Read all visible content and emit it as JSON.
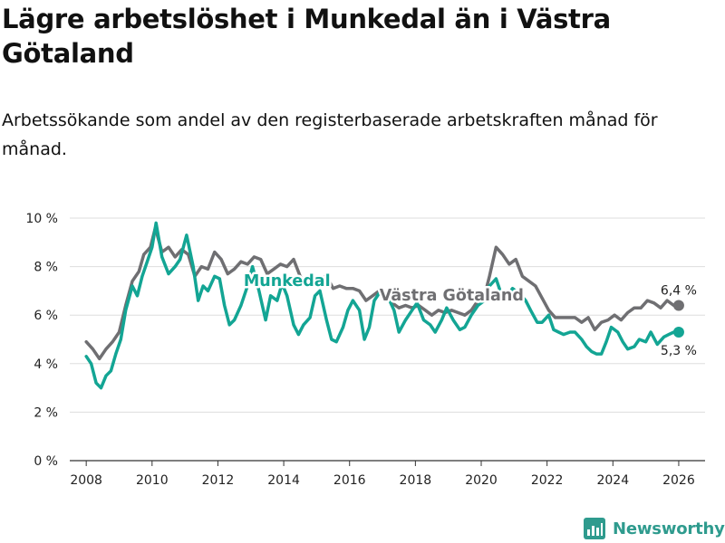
{
  "title": "Lägre arbetslöshet i Munkedal än i Västra Götaland",
  "subtitle": "Arbetssökande som andel av den registerbaserade arbetskraften månad för månad.",
  "brand": {
    "name": "Newsworthy",
    "icon": "newsworthy-logo-icon",
    "color": "#2f9b8e"
  },
  "chart_data": {
    "type": "line",
    "title": "Lägre arbetslöshet i Munkedal än i Västra Götaland",
    "xlabel": "",
    "ylabel": "",
    "xlim": [
      2007.5,
      2026.8
    ],
    "ylim": [
      0,
      10
    ],
    "x_ticks": [
      {
        "value": 2008,
        "label": "2008"
      },
      {
        "value": 2010,
        "label": "2010"
      },
      {
        "value": 2012,
        "label": "2012"
      },
      {
        "value": 2014,
        "label": "2014"
      },
      {
        "value": 2016,
        "label": "2016"
      },
      {
        "value": 2018,
        "label": "2018"
      },
      {
        "value": 2020,
        "label": "2020"
      },
      {
        "value": 2022,
        "label": "2022"
      },
      {
        "value": 2024,
        "label": "2024"
      },
      {
        "value": 2026,
        "label": "2026"
      }
    ],
    "y_ticks": [
      {
        "value": 0,
        "label": "0 %"
      },
      {
        "value": 2,
        "label": "2 %"
      },
      {
        "value": 4,
        "label": "4 %"
      },
      {
        "value": 6,
        "label": "6 %"
      },
      {
        "value": 8,
        "label": "8 %"
      },
      {
        "value": 10,
        "label": "10 %"
      }
    ],
    "grid": true,
    "series": [
      {
        "name": "Västra Götaland",
        "color": "#6f6f72",
        "label_position": [
          2019.1,
          6.6
        ],
        "end_label": "6,4 %",
        "end_label_side": "above",
        "points": [
          [
            2008.0,
            4.9
          ],
          [
            2008.2,
            4.6
          ],
          [
            2008.4,
            4.2
          ],
          [
            2008.6,
            4.6
          ],
          [
            2008.8,
            4.9
          ],
          [
            2009.0,
            5.3
          ],
          [
            2009.2,
            6.4
          ],
          [
            2009.4,
            7.4
          ],
          [
            2009.6,
            7.8
          ],
          [
            2009.75,
            8.5
          ],
          [
            2009.95,
            8.8
          ],
          [
            2010.1,
            9.6
          ],
          [
            2010.3,
            8.6
          ],
          [
            2010.5,
            8.8
          ],
          [
            2010.7,
            8.4
          ],
          [
            2010.9,
            8.7
          ],
          [
            2011.1,
            8.5
          ],
          [
            2011.3,
            7.6
          ],
          [
            2011.5,
            8.0
          ],
          [
            2011.7,
            7.9
          ],
          [
            2011.9,
            8.6
          ],
          [
            2012.1,
            8.3
          ],
          [
            2012.3,
            7.7
          ],
          [
            2012.5,
            7.9
          ],
          [
            2012.7,
            8.2
          ],
          [
            2012.9,
            8.1
          ],
          [
            2013.1,
            8.4
          ],
          [
            2013.3,
            8.3
          ],
          [
            2013.5,
            7.7
          ],
          [
            2013.7,
            7.9
          ],
          [
            2013.9,
            8.1
          ],
          [
            2014.1,
            8.0
          ],
          [
            2014.3,
            8.3
          ],
          [
            2014.5,
            7.6
          ],
          [
            2014.7,
            7.3
          ],
          [
            2014.9,
            7.3
          ],
          [
            2015.1,
            7.5
          ],
          [
            2015.3,
            7.6
          ],
          [
            2015.5,
            7.1
          ],
          [
            2015.7,
            7.2
          ],
          [
            2015.9,
            7.1
          ],
          [
            2016.1,
            7.1
          ],
          [
            2016.3,
            7.0
          ],
          [
            2016.5,
            6.6
          ],
          [
            2016.7,
            6.8
          ],
          [
            2016.9,
            7.0
          ],
          [
            2017.1,
            6.9
          ],
          [
            2017.3,
            6.5
          ],
          [
            2017.5,
            6.3
          ],
          [
            2017.7,
            6.4
          ],
          [
            2017.9,
            6.3
          ],
          [
            2018.1,
            6.4
          ],
          [
            2018.3,
            6.2
          ],
          [
            2018.5,
            6.0
          ],
          [
            2018.7,
            6.2
          ],
          [
            2018.9,
            6.1
          ],
          [
            2019.1,
            6.2
          ],
          [
            2019.3,
            6.1
          ],
          [
            2019.5,
            6.0
          ],
          [
            2019.7,
            6.2
          ],
          [
            2019.9,
            6.6
          ],
          [
            2020.1,
            6.8
          ],
          [
            2020.25,
            7.6
          ],
          [
            2020.45,
            8.8
          ],
          [
            2020.65,
            8.5
          ],
          [
            2020.85,
            8.1
          ],
          [
            2021.05,
            8.3
          ],
          [
            2021.25,
            7.6
          ],
          [
            2021.45,
            7.4
          ],
          [
            2021.65,
            7.2
          ],
          [
            2021.85,
            6.7
          ],
          [
            2022.05,
            6.2
          ],
          [
            2022.25,
            5.9
          ],
          [
            2022.45,
            5.9
          ],
          [
            2022.65,
            5.9
          ],
          [
            2022.85,
            5.9
          ],
          [
            2023.05,
            5.7
          ],
          [
            2023.25,
            5.9
          ],
          [
            2023.45,
            5.4
          ],
          [
            2023.65,
            5.7
          ],
          [
            2023.85,
            5.8
          ],
          [
            2024.05,
            6.0
          ],
          [
            2024.25,
            5.8
          ],
          [
            2024.45,
            6.1
          ],
          [
            2024.65,
            6.3
          ],
          [
            2024.85,
            6.3
          ],
          [
            2025.05,
            6.6
          ],
          [
            2025.25,
            6.5
          ],
          [
            2025.45,
            6.3
          ],
          [
            2025.65,
            6.6
          ],
          [
            2025.85,
            6.4
          ],
          [
            2026.0,
            6.4
          ]
        ]
      },
      {
        "name": "Munkedal",
        "color": "#13a594",
        "label_position": [
          2014.1,
          7.2
        ],
        "end_label": "5,3 %",
        "end_label_side": "below",
        "points": [
          [
            2008.0,
            4.3
          ],
          [
            2008.15,
            4.0
          ],
          [
            2008.3,
            3.2
          ],
          [
            2008.45,
            3.0
          ],
          [
            2008.6,
            3.5
          ],
          [
            2008.75,
            3.7
          ],
          [
            2008.9,
            4.4
          ],
          [
            2009.05,
            5.0
          ],
          [
            2009.2,
            6.2
          ],
          [
            2009.4,
            7.2
          ],
          [
            2009.55,
            6.8
          ],
          [
            2009.7,
            7.6
          ],
          [
            2009.85,
            8.2
          ],
          [
            2010.0,
            8.8
          ],
          [
            2010.12,
            9.8
          ],
          [
            2010.3,
            8.4
          ],
          [
            2010.5,
            7.7
          ],
          [
            2010.7,
            8.0
          ],
          [
            2010.85,
            8.3
          ],
          [
            2011.05,
            9.3
          ],
          [
            2011.25,
            8.0
          ],
          [
            2011.4,
            6.6
          ],
          [
            2011.55,
            7.2
          ],
          [
            2011.7,
            7.0
          ],
          [
            2011.9,
            7.6
          ],
          [
            2012.05,
            7.5
          ],
          [
            2012.2,
            6.4
          ],
          [
            2012.35,
            5.6
          ],
          [
            2012.5,
            5.8
          ],
          [
            2012.7,
            6.4
          ],
          [
            2012.9,
            7.2
          ],
          [
            2013.05,
            8.0
          ],
          [
            2013.25,
            7.0
          ],
          [
            2013.45,
            5.8
          ],
          [
            2013.6,
            6.8
          ],
          [
            2013.8,
            6.6
          ],
          [
            2013.95,
            7.3
          ],
          [
            2014.1,
            6.8
          ],
          [
            2014.3,
            5.6
          ],
          [
            2014.45,
            5.2
          ],
          [
            2014.6,
            5.6
          ],
          [
            2014.8,
            5.9
          ],
          [
            2014.95,
            6.8
          ],
          [
            2015.1,
            7.0
          ],
          [
            2015.3,
            5.8
          ],
          [
            2015.45,
            5.0
          ],
          [
            2015.6,
            4.9
          ],
          [
            2015.8,
            5.5
          ],
          [
            2015.95,
            6.2
          ],
          [
            2016.1,
            6.6
          ],
          [
            2016.3,
            6.2
          ],
          [
            2016.45,
            5.0
          ],
          [
            2016.6,
            5.5
          ],
          [
            2016.75,
            6.6
          ],
          [
            2016.95,
            7.0
          ],
          [
            2017.15,
            6.8
          ],
          [
            2017.35,
            6.2
          ],
          [
            2017.5,
            5.3
          ],
          [
            2017.7,
            5.8
          ],
          [
            2017.9,
            6.2
          ],
          [
            2018.05,
            6.5
          ],
          [
            2018.25,
            5.8
          ],
          [
            2018.45,
            5.6
          ],
          [
            2018.6,
            5.3
          ],
          [
            2018.8,
            5.8
          ],
          [
            2018.95,
            6.3
          ],
          [
            2019.15,
            5.8
          ],
          [
            2019.35,
            5.4
          ],
          [
            2019.5,
            5.5
          ],
          [
            2019.7,
            6.0
          ],
          [
            2019.9,
            6.4
          ],
          [
            2020.1,
            6.6
          ],
          [
            2020.25,
            7.2
          ],
          [
            2020.45,
            7.5
          ],
          [
            2020.6,
            6.9
          ],
          [
            2020.8,
            6.8
          ],
          [
            2020.95,
            7.1
          ],
          [
            2021.15,
            6.9
          ],
          [
            2021.35,
            6.6
          ],
          [
            2021.5,
            6.2
          ],
          [
            2021.7,
            5.7
          ],
          [
            2021.85,
            5.7
          ],
          [
            2022.05,
            6.0
          ],
          [
            2022.2,
            5.4
          ],
          [
            2022.35,
            5.3
          ],
          [
            2022.5,
            5.2
          ],
          [
            2022.7,
            5.3
          ],
          [
            2022.85,
            5.3
          ],
          [
            2023.05,
            5.0
          ],
          [
            2023.2,
            4.7
          ],
          [
            2023.35,
            4.5
          ],
          [
            2023.5,
            4.4
          ],
          [
            2023.65,
            4.4
          ],
          [
            2023.8,
            4.9
          ],
          [
            2023.95,
            5.5
          ],
          [
            2024.15,
            5.3
          ],
          [
            2024.3,
            4.9
          ],
          [
            2024.45,
            4.6
          ],
          [
            2024.65,
            4.7
          ],
          [
            2024.8,
            5.0
          ],
          [
            2025.0,
            4.9
          ],
          [
            2025.15,
            5.3
          ],
          [
            2025.35,
            4.8
          ],
          [
            2025.55,
            5.1
          ],
          [
            2025.7,
            5.2
          ],
          [
            2025.85,
            5.3
          ],
          [
            2026.0,
            5.3
          ]
        ]
      }
    ]
  }
}
